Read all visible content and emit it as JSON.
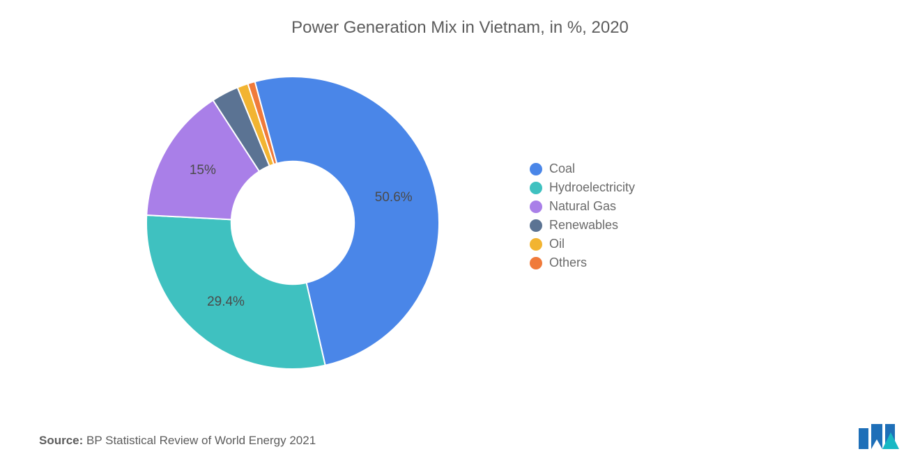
{
  "chart": {
    "type": "donut",
    "title": "Power Generation Mix in Vietnam, in %, 2020",
    "title_fontsize": 24,
    "title_color": "#5c5c5c",
    "background_color": "#ffffff",
    "inner_radius_pct": 42,
    "outer_radius_pct": 100,
    "start_angle_deg": -105,
    "slices": [
      {
        "label": "Coal",
        "value": 50.6,
        "color": "#4a86e8",
        "show_value": true,
        "display": "50.6%"
      },
      {
        "label": "Hydroelectricity",
        "value": 29.4,
        "color": "#3fc1c0",
        "show_value": true,
        "display": "29.4%"
      },
      {
        "label": "Natural Gas",
        "value": 15.0,
        "color": "#a97fe8",
        "show_value": true,
        "display": "15%"
      },
      {
        "label": "Renewables",
        "value": 3.0,
        "color": "#5b7393",
        "show_value": false,
        "display": "3%"
      },
      {
        "label": "Oil",
        "value": 1.2,
        "color": "#f2b431",
        "show_value": false,
        "display": "1.2%"
      },
      {
        "label": "Others",
        "value": 0.8,
        "color": "#f07a3a",
        "show_value": false,
        "display": "0.8%"
      }
    ],
    "label_fontsize": 19,
    "label_color": "#4a4a4a",
    "legend": {
      "fontsize": 18,
      "color": "#6a6a6a",
      "swatch_shape": "circle"
    }
  },
  "source": {
    "label": "Source:",
    "text": "BP Statistical Review of World Energy 2021",
    "fontsize": 17,
    "color": "#5c5c5c"
  },
  "logo": {
    "bar_color": "#1e6fb8",
    "accent_color": "#18b8c4"
  }
}
